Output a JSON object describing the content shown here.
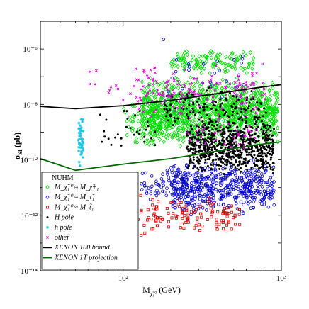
{
  "chart_data": {
    "type": "scatter",
    "title": "",
    "xlabel": "M_χ̃₁⁰ (GeV)",
    "ylabel": "σ_SI (pb)",
    "xscale": "log",
    "yscale": "log",
    "xlim": [
      30,
      1000
    ],
    "ylim": [
      1e-14,
      1e-05
    ],
    "x_ticks": [
      {
        "value": 100,
        "label": "10²"
      },
      {
        "value": 1000,
        "label": "10³"
      }
    ],
    "y_ticks": [
      {
        "value": 1e-06,
        "label": "10⁻⁶"
      },
      {
        "value": 1e-08,
        "label": "10⁻⁸"
      },
      {
        "value": 1e-10,
        "label": "10⁻¹⁰"
      },
      {
        "value": 1e-12,
        "label": "10⁻¹²"
      },
      {
        "value": 1e-14,
        "label": "10⁻¹⁴"
      }
    ],
    "legend": {
      "title": "NUHM",
      "placement": "bottom-left",
      "entries": [
        {
          "label": "M_χ̃₁⁰ ≈ M_χ̃±₁",
          "marker": "diamond",
          "color": "#00dd00"
        },
        {
          "label": "M_χ̃₁⁰ ≈ M_τ̃₁",
          "marker": "circle",
          "color": "#0000cc"
        },
        {
          "label": "M_χ̃₁⁰ ≈ M_t̃₁",
          "marker": "square",
          "color": "#dd0000"
        },
        {
          "label": "H pole",
          "marker": "dot",
          "color": "#000000"
        },
        {
          "label": "h pole",
          "marker": "star",
          "color": "#22c4e0"
        },
        {
          "label": "other",
          "marker": "cross",
          "color": "#dd00dd"
        },
        {
          "label": "XENON 100 bound",
          "marker": "line",
          "color": "#000000"
        },
        {
          "label": "XENON 1T projection",
          "marker": "line",
          "color": "#006600"
        }
      ]
    },
    "lines": [
      {
        "name": "XENON 100 bound",
        "color": "#000000",
        "points": [
          [
            30,
            8.5e-09
          ],
          [
            50,
            7e-09
          ],
          [
            100,
            9e-09
          ],
          [
            200,
            1.4e-08
          ],
          [
            400,
            2.5e-08
          ],
          [
            700,
            4e-08
          ],
          [
            1000,
            5.2e-08
          ]
        ]
      },
      {
        "name": "XENON 1T projection",
        "color": "#006600",
        "points": [
          [
            30,
            1.1e-10
          ],
          [
            50,
            4.2e-11
          ],
          [
            100,
            7e-11
          ],
          [
            200,
            1.1e-10
          ],
          [
            400,
            2.1e-10
          ],
          [
            700,
            3.5e-10
          ],
          [
            1000,
            4.5e-10
          ]
        ]
      }
    ],
    "series": [
      {
        "name": "M_χ̃₁⁰ ≈ M_χ̃±₁",
        "marker": "diamond",
        "color": "#00dd00",
        "regions": [
          {
            "x": [
              130,
              950
            ],
            "y": [
              3e-10,
              1e-07
            ],
            "count": 1100
          },
          {
            "x": [
              200,
              700
            ],
            "y": [
              1e-07,
              1e-06
            ],
            "count": 120
          },
          {
            "x": [
              100,
              200
            ],
            "y": [
              3e-10,
              2e-08
            ],
            "count": 90
          }
        ]
      },
      {
        "name": "M_χ̃₁⁰ ≈ M_τ̃₁",
        "marker": "circle",
        "color": "#0000cc",
        "regions": [
          {
            "x": [
              200,
              900
            ],
            "y": [
              1e-12,
              1e-10
            ],
            "count": 520
          },
          {
            "x": [
              130,
              260
            ],
            "y": [
              3e-12,
              5e-11
            ],
            "count": 70
          },
          {
            "x": [
              180,
              600
            ],
            "y": [
              1e-08,
              3e-06
            ],
            "count": 25
          }
        ]
      },
      {
        "name": "M_χ̃₁⁰ ≈ M_t̃₁",
        "marker": "square",
        "color": "#dd0000",
        "regions": [
          {
            "x": [
              150,
              550
            ],
            "y": [
              2e-13,
              5e-12
            ],
            "count": 110
          },
          {
            "x": [
              110,
              170
            ],
            "y": [
              1e-13,
              1e-11
            ],
            "count": 18
          }
        ]
      },
      {
        "name": "H pole",
        "marker": "dot",
        "color": "#000000",
        "regions": [
          {
            "x": [
              250,
              900
            ],
            "y": [
              3e-11,
              3e-09
            ],
            "count": 700
          },
          {
            "x": [
              180,
              800
            ],
            "y": [
              1e-09,
              5e-08
            ],
            "count": 160
          },
          {
            "x": [
              60,
              160
            ],
            "y": [
              1e-10,
              1e-08
            ],
            "count": 30
          }
        ]
      },
      {
        "name": "h pole",
        "marker": "star",
        "color": "#22c4e0",
        "regions": [
          {
            "x": [
              52,
              56
            ],
            "y": [
              4e-11,
              5e-09
            ],
            "count": 45
          }
        ]
      },
      {
        "name": "other",
        "marker": "cross",
        "color": "#dd00dd",
        "regions": [
          {
            "x": [
              120,
              800
            ],
            "y": [
              3e-09,
              3e-07
            ],
            "count": 160
          },
          {
            "x": [
              60,
              200
            ],
            "y": [
              8e-09,
              3e-07
            ],
            "count": 25
          },
          {
            "x": [
              250,
              700
            ],
            "y": [
              2e-10,
              3e-09
            ],
            "count": 40
          }
        ]
      }
    ]
  }
}
